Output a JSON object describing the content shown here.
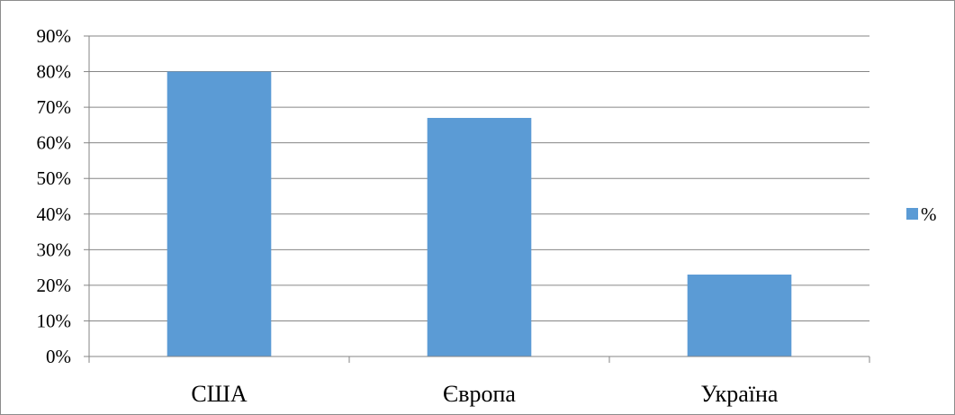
{
  "chart_data": {
    "type": "bar",
    "categories": [
      "США",
      "Європа",
      "Україна"
    ],
    "series": [
      {
        "name": "%",
        "values": [
          80,
          67,
          23
        ],
        "color": "#5b9bd5"
      }
    ],
    "ylim": [
      0,
      90
    ],
    "yticks": [
      0,
      10,
      20,
      30,
      40,
      50,
      60,
      70,
      80,
      90
    ],
    "ytick_labels": [
      "0%",
      "10%",
      "20%",
      "30%",
      "40%",
      "50%",
      "60%",
      "70%",
      "80%",
      "90%"
    ],
    "grid": true,
    "legend": "right"
  }
}
